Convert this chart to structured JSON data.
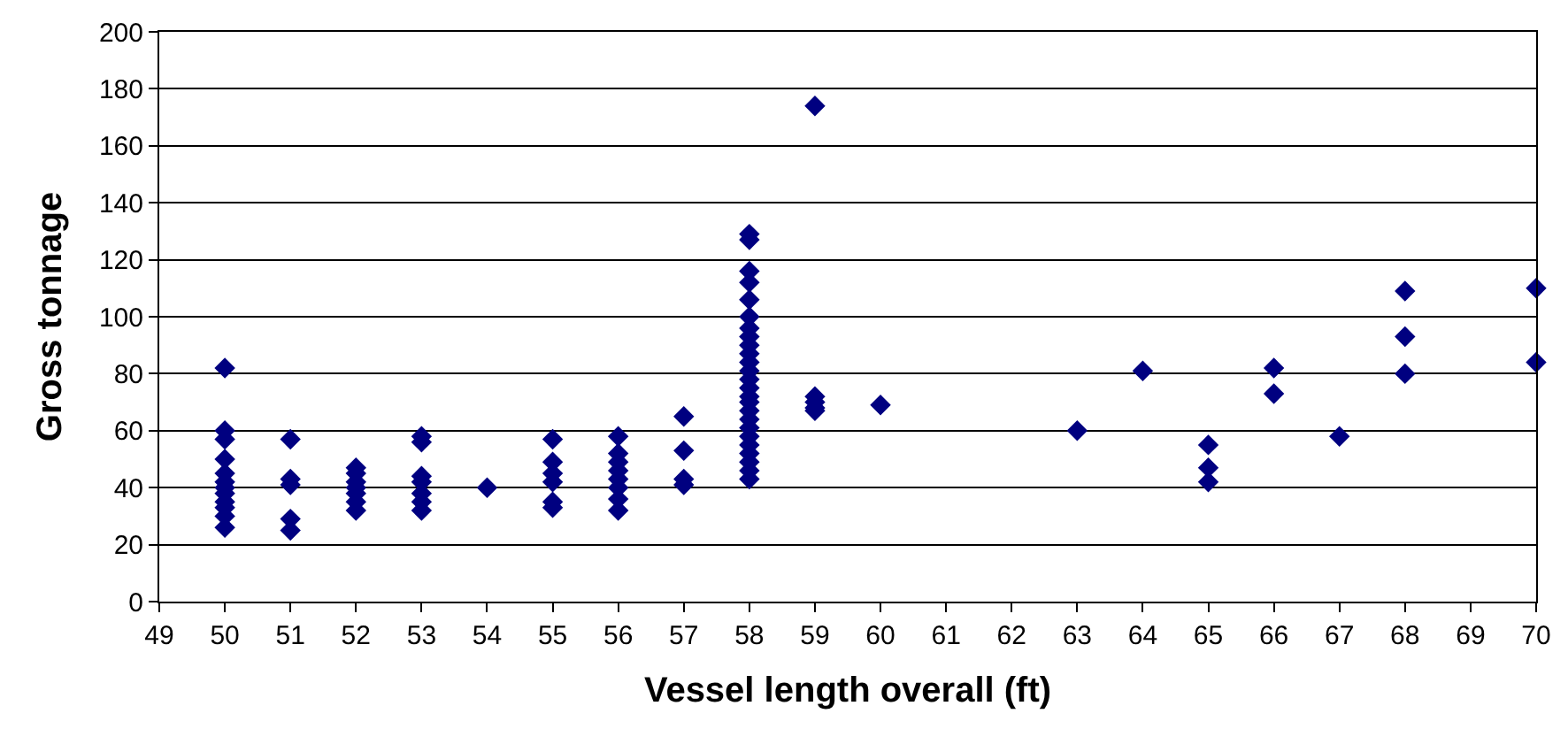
{
  "chart_data": {
    "type": "scatter",
    "xlabel": "Vessel length overall (ft)",
    "ylabel": "Gross tonnage",
    "marker": "diamond",
    "grid": "y",
    "xlim": [
      49,
      70
    ],
    "xticks": [
      49,
      50,
      51,
      52,
      53,
      54,
      55,
      56,
      57,
      58,
      59,
      60,
      61,
      62,
      63,
      64,
      65,
      66,
      67,
      68,
      69,
      70
    ],
    "ylim": [
      0,
      200
    ],
    "yticks": [
      0,
      20,
      40,
      60,
      80,
      100,
      120,
      140,
      160,
      180,
      200
    ],
    "series": [
      {
        "color": "#000080",
        "x": [
          50,
          50,
          50,
          50,
          50,
          50,
          50,
          50,
          50,
          50,
          50,
          50,
          51,
          51,
          51,
          51,
          51,
          52,
          52,
          52,
          52,
          52,
          52,
          52,
          53,
          53,
          53,
          53,
          53,
          53,
          53,
          54,
          55,
          55,
          55,
          55,
          55,
          55,
          56,
          56,
          56,
          56,
          56,
          56,
          56,
          56,
          57,
          57,
          57,
          57,
          58,
          58,
          58,
          58,
          58,
          58,
          58,
          58,
          58,
          58,
          58,
          58,
          58,
          58,
          58,
          58,
          58,
          58,
          58,
          58,
          58,
          58,
          58,
          58,
          58,
          59,
          59,
          59,
          59,
          59,
          60,
          63,
          64,
          65,
          65,
          65,
          66,
          66,
          67,
          68,
          68,
          68,
          70,
          70
        ],
        "values": [
          82,
          60,
          57,
          50,
          45,
          42,
          40,
          38,
          35,
          33,
          30,
          26,
          57,
          43,
          41,
          29,
          25,
          47,
          45,
          42,
          40,
          38,
          35,
          32,
          58,
          56,
          44,
          42,
          38,
          35,
          32,
          40,
          57,
          49,
          45,
          42,
          35,
          33,
          58,
          52,
          49,
          46,
          43,
          40,
          36,
          32,
          65,
          53,
          43,
          41,
          129,
          127,
          116,
          112,
          106,
          100,
          96,
          93,
          90,
          87,
          84,
          81,
          78,
          75,
          72,
          70,
          67,
          64,
          61,
          58,
          55,
          52,
          49,
          46,
          43,
          174,
          72,
          70,
          68,
          67,
          69,
          60,
          81,
          55,
          47,
          42,
          82,
          73,
          58,
          109,
          93,
          80,
          110,
          84
        ]
      }
    ]
  }
}
